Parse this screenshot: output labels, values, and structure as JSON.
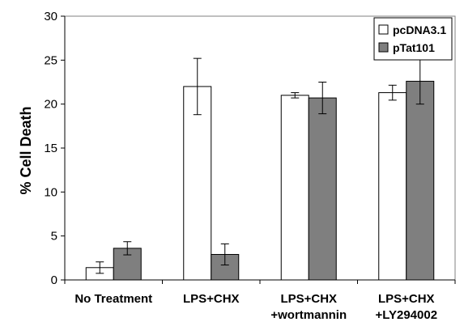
{
  "chart_data": {
    "type": "bar",
    "title": "",
    "xlabel": "",
    "ylabel": "% Cell Death",
    "ylim": [
      0,
      30
    ],
    "yticks": [
      0,
      5,
      10,
      15,
      20,
      25,
      30
    ],
    "grid": false,
    "legend_position": "top-right",
    "categories": [
      [
        "No Treatment"
      ],
      [
        "LPS+CHX"
      ],
      [
        "LPS+CHX",
        "+wortmannin"
      ],
      [
        "LPS+CHX",
        "+LY294002"
      ]
    ],
    "series": [
      {
        "name": "pcDNA3.1",
        "color": "#ffffff",
        "values": [
          1.4,
          22.0,
          21.0,
          21.3
        ],
        "errors": [
          0.65,
          3.2,
          0.3,
          0.85
        ]
      },
      {
        "name": "pTat101",
        "color": "#7f7f7f",
        "values": [
          3.6,
          2.9,
          20.7,
          22.6
        ],
        "errors": [
          0.75,
          1.2,
          1.8,
          2.6
        ]
      }
    ]
  }
}
